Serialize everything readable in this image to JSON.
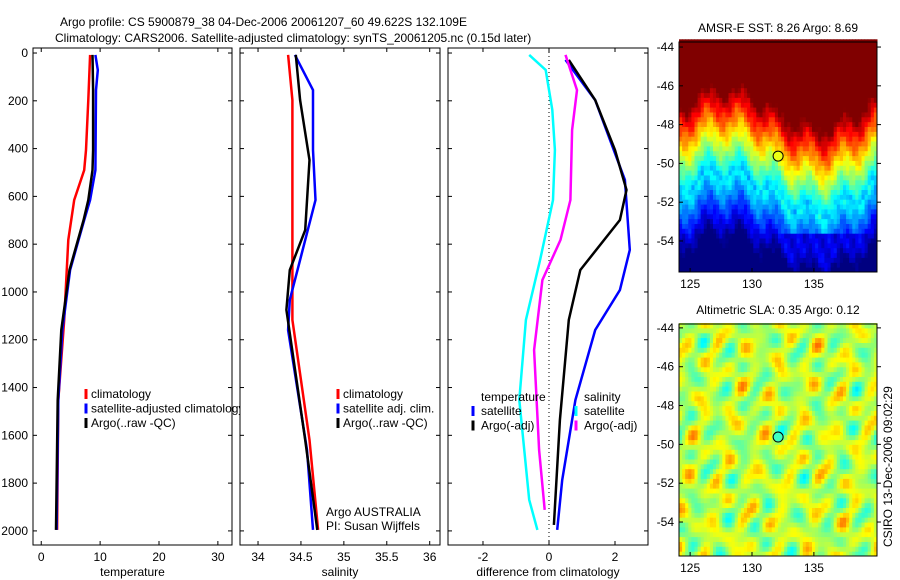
{
  "title_line1": "Argo profile: CS 5900879_38 04-Dec-2006 20061207_60 49.622S 132.109E",
  "title_line2": "Climatology: CARS2006. Satellite-adjusted climatology: synTS_20061205.nc (0.15d later)",
  "side_stamp": "CSIRO 13-Dec-2006 09:02:29",
  "chart_data": [
    {
      "type": "line",
      "name": "temperature",
      "xlabel": "temperature",
      "xlim": [
        -1.4,
        32.4
      ],
      "ylim": [
        -21,
        2059
      ],
      "y_reversed": true,
      "xticks": [
        0,
        10,
        20,
        30
      ],
      "yticks": [
        0,
        200,
        400,
        600,
        800,
        1000,
        1200,
        1400,
        1600,
        1800,
        2000
      ],
      "legend": [
        "climatology",
        "satellite-adjusted climatology",
        "Argo(..raw -QC)"
      ],
      "series": [
        {
          "name": "climatology",
          "color": "#ff0000",
          "depth": [
            8,
            197,
            406,
            490,
            615,
            782,
            1117,
            1452,
            1996
          ],
          "values": [
            8.3,
            8.0,
            7.6,
            7.3,
            5.6,
            4.6,
            3.9,
            2.9,
            2.7
          ]
        },
        {
          "name": "satellite-adjusted climatology",
          "color": "#0000ff",
          "depth": [
            8,
            71,
            155,
            490,
            615,
            699,
            908,
            1159,
            1452,
            1996
          ],
          "values": [
            9.2,
            9.6,
            9.3,
            9.2,
            8.3,
            7.3,
            4.9,
            3.6,
            2.9,
            2.6
          ]
        },
        {
          "name": "Argo(..raw -QC)",
          "color": "#000000",
          "depth": [
            8,
            155,
            406,
            490,
            615,
            699,
            908,
            1159,
            1452,
            1996
          ],
          "values": [
            8.7,
            8.8,
            8.8,
            8.7,
            8.0,
            7.2,
            4.8,
            3.4,
            2.8,
            2.5
          ]
        }
      ]
    },
    {
      "type": "line",
      "name": "salinity",
      "xlabel": "salinity",
      "xlim": [
        33.79,
        36.12
      ],
      "ylim": [
        -21,
        2059
      ],
      "y_reversed": true,
      "xticks": [
        34,
        34.5,
        35,
        35.5,
        36
      ],
      "legend": [
        "climatology",
        "satellite adj. clim.",
        "Argo(..raw -QC)"
      ],
      "annotation": [
        "Argo AUSTRALIA",
        "PI: Susan Wijffels"
      ],
      "series": [
        {
          "name": "climatology",
          "color": "#ff0000",
          "depth": [
            8,
            197,
            1117,
            1619,
            1996
          ],
          "values": [
            34.35,
            34.4,
            34.4,
            34.6,
            34.7
          ]
        },
        {
          "name": "satellite adj. clim.",
          "color": "#0000ff",
          "depth": [
            8,
            155,
            406,
            615,
            866,
            1033,
            1159,
            1661,
            1996
          ],
          "values": [
            34.43,
            34.64,
            34.64,
            34.67,
            34.49,
            34.37,
            34.35,
            34.57,
            34.64
          ]
        },
        {
          "name": "Argo(..raw -QC)",
          "color": "#000000",
          "depth": [
            8,
            197,
            448,
            741,
            908,
            1075,
            1619,
            1996
          ],
          "values": [
            34.44,
            34.49,
            34.6,
            34.55,
            34.37,
            34.33,
            34.55,
            34.69
          ]
        }
      ]
    },
    {
      "type": "line",
      "name": "difference",
      "xlabel": "difference from climatology",
      "xlim": [
        -3.06,
        3.0
      ],
      "ylim": [
        -21,
        2059
      ],
      "y_reversed": true,
      "xticks": [
        -2,
        0,
        2
      ],
      "legend_groups": [
        {
          "title": "temperature",
          "items": [
            "satellite",
            "Argo(-adj)"
          ]
        },
        {
          "title": "salinity",
          "items": [
            "satellite",
            "Argo(-adj)"
          ]
        }
      ],
      "series": [
        {
          "name": "temperature satellite",
          "color": "#0000ff",
          "depth": [
            29,
            197,
            531,
            824,
            992,
            1159,
            1452,
            1787,
            1996
          ],
          "values": [
            0.5,
            1.4,
            2.3,
            2.45,
            2.15,
            1.4,
            0.8,
            0.4,
            0.25
          ]
        },
        {
          "name": "temperature Argo(-adj)",
          "color": "#000000",
          "depth": [
            29,
            197,
            406,
            573,
            699,
            908,
            1117,
            1536,
            1975
          ],
          "values": [
            0.6,
            1.4,
            2.0,
            2.35,
            2.15,
            0.95,
            0.6,
            0.33,
            0.15
          ]
        },
        {
          "name": "salinity satellite",
          "color": "#00ffff",
          "depth": [
            8,
            71,
            238,
            406,
            615,
            866,
            1117,
            1452,
            1870,
            1996
          ],
          "values": [
            -0.6,
            -0.1,
            0.1,
            0.18,
            0.12,
            -0.27,
            -0.7,
            -0.9,
            -0.6,
            -0.35
          ]
        },
        {
          "name": "salinity Argo(-adj)",
          "color": "#ff00ff",
          "depth": [
            8,
            155,
            322,
            615,
            782,
            950,
            1243,
            1661,
            1912
          ],
          "values": [
            0.5,
            0.85,
            0.7,
            0.65,
            0.35,
            -0.2,
            -0.45,
            -0.3,
            -0.13
          ]
        }
      ]
    },
    {
      "type": "heatmap",
      "name": "sst-map",
      "title": "AMSR-E SST: 8.26 Argo: 8.69",
      "xlim": [
        124.1,
        140.1
      ],
      "ylim": [
        -55.6,
        -43.74
      ],
      "xticks": [
        125,
        130,
        135
      ],
      "yticks": [
        -44,
        -46,
        -48,
        -50,
        -52,
        -54
      ],
      "marker": {
        "lon": 132.109,
        "lat": -49.622
      }
    },
    {
      "type": "heatmap",
      "name": "sla-map",
      "title": "Altimetric SLA: 0.35 Argo: 0.12",
      "xlim": [
        124.1,
        140.1
      ],
      "ylim": [
        -55.75,
        -43.8
      ],
      "xticks": [
        125,
        130,
        135
      ],
      "yticks": [
        -44,
        -46,
        -48,
        -50,
        -52,
        -54
      ],
      "marker": {
        "lon": 132.109,
        "lat": -49.622
      }
    }
  ]
}
